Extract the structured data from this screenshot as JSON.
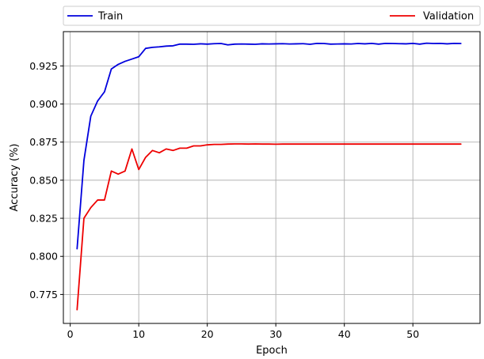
{
  "chart_data": {
    "type": "line",
    "xlabel": "Epoch",
    "ylabel": "Accuracy (%)",
    "xlim": [
      -1.0,
      59.8
    ],
    "ylim": [
      0.756,
      0.9475
    ],
    "xticks": [
      0,
      10,
      20,
      30,
      40,
      50
    ],
    "yticks": [
      0.775,
      0.8,
      0.825,
      0.85,
      0.875,
      0.9,
      0.925
    ],
    "grid": true,
    "legend_position": "top",
    "series": [
      {
        "name": "Train",
        "color": "#0000dd",
        "x": [
          1,
          2,
          3,
          4,
          5,
          6,
          7,
          8,
          9,
          10,
          11,
          12,
          13,
          14,
          15,
          16,
          17,
          18,
          19,
          20,
          21,
          22,
          23,
          24,
          25,
          26,
          27,
          28,
          29,
          30,
          31,
          32,
          33,
          34,
          35,
          36,
          37,
          38,
          39,
          40,
          41,
          42,
          43,
          44,
          45,
          46,
          47,
          48,
          49,
          50,
          51,
          52,
          53,
          54,
          55,
          56,
          57
        ],
        "values": [
          0.805,
          0.863,
          0.892,
          0.902,
          0.908,
          0.923,
          0.926,
          0.928,
          0.9295,
          0.931,
          0.9365,
          0.9372,
          0.9375,
          0.938,
          0.9382,
          0.9393,
          0.9393,
          0.9392,
          0.9395,
          0.9393,
          0.9396,
          0.9397,
          0.9388,
          0.9393,
          0.9394,
          0.9393,
          0.9392,
          0.9395,
          0.9394,
          0.9395,
          0.9396,
          0.9394,
          0.9395,
          0.9396,
          0.9392,
          0.9398,
          0.9397,
          0.9393,
          0.9394,
          0.9395,
          0.9394,
          0.9397,
          0.9395,
          0.9398,
          0.9393,
          0.9398,
          0.9397,
          0.9396,
          0.9395,
          0.9398,
          0.9393,
          0.9399,
          0.9397,
          0.9398,
          0.9395,
          0.9398,
          0.9397
        ]
      },
      {
        "name": "Validation",
        "color": "#ee0000",
        "x": [
          1,
          2,
          3,
          4,
          5,
          6,
          7,
          8,
          9,
          10,
          11,
          12,
          13,
          14,
          15,
          16,
          17,
          18,
          19,
          20,
          21,
          22,
          23,
          24,
          25,
          26,
          27,
          28,
          29,
          30,
          31,
          32,
          33,
          34,
          35,
          36,
          37,
          38,
          39,
          40,
          41,
          42,
          43,
          44,
          45,
          46,
          47,
          48,
          49,
          50,
          51,
          52,
          53,
          54,
          55,
          56,
          57
        ],
        "values": [
          0.765,
          0.825,
          0.832,
          0.837,
          0.837,
          0.856,
          0.854,
          0.856,
          0.8705,
          0.857,
          0.865,
          0.8695,
          0.868,
          0.8705,
          0.8695,
          0.871,
          0.871,
          0.8725,
          0.8725,
          0.8732,
          0.8735,
          0.8735,
          0.8737,
          0.8738,
          0.8738,
          0.8737,
          0.8738,
          0.8737,
          0.8737,
          0.8736,
          0.8737,
          0.8737,
          0.8737,
          0.8737,
          0.8737,
          0.8737,
          0.8737,
          0.8737,
          0.8737,
          0.8737,
          0.8737,
          0.8737,
          0.8737,
          0.8737,
          0.8737,
          0.8737,
          0.8737,
          0.8737,
          0.8737,
          0.8737,
          0.8737,
          0.8737,
          0.8737,
          0.8737,
          0.8737,
          0.8737,
          0.8737
        ]
      }
    ]
  }
}
